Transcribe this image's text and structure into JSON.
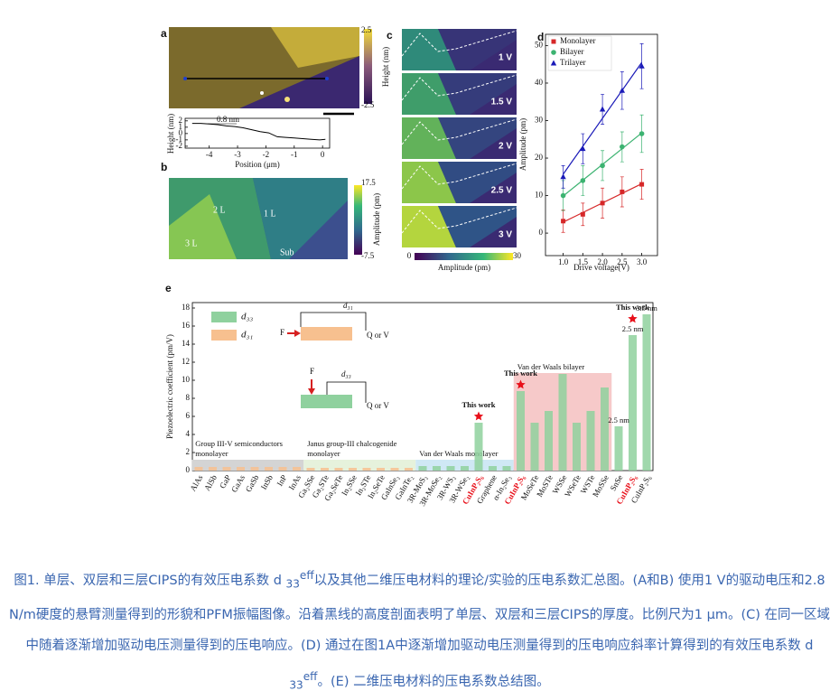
{
  "figure": {
    "a": {
      "label": "a",
      "colorbar": {
        "max": 2.5,
        "min": -2.5,
        "title": "Height (nm)"
      }
    },
    "b": {
      "label": "b",
      "colorbar": {
        "max": 17.5,
        "min": -7.5,
        "title": "Amplitude (pm)"
      },
      "regions": [
        "2 L",
        "1 L",
        "3 L",
        "Sub"
      ]
    },
    "c": {
      "label": "c",
      "frames": [
        "1 V",
        "1.5 V",
        "2 V",
        "2.5 V",
        "3 V"
      ],
      "colorbar": {
        "min": 0,
        "max": 30,
        "title": "Amplitude (pm)"
      }
    },
    "e": {
      "schematic": {
        "force": "F",
        "top_label": "d₃₁",
        "output": "Q or V",
        "bottom_label": "d₃₃"
      }
    }
  },
  "chart_data": [
    {
      "type": "line",
      "x": [
        -4.6,
        -4.3,
        -4.0,
        -3.7,
        -3.4,
        -3.1,
        -2.8,
        -2.5,
        -2.2,
        -1.9,
        -1.6,
        -1.3,
        -1.0,
        -0.7,
        -0.4,
        -0.1,
        0.1
      ],
      "values": [
        1.6,
        1.6,
        1.5,
        1.4,
        1.2,
        1.1,
        0.9,
        0.6,
        0.3,
        0.1,
        -0.5,
        -0.6,
        -0.7,
        -0.8,
        -0.9,
        -1.0,
        -0.9
      ],
      "color": "#000000",
      "xlim": [
        -4.85,
        0.25
      ],
      "ylim": [
        -2.3,
        2.4
      ],
      "xticks": [
        -4,
        -3,
        -2,
        -1,
        0
      ],
      "yticks": [
        2,
        1,
        0,
        -1,
        -2
      ],
      "xlabel": "Position (μm)",
      "ylabel": "Height (nm)",
      "annotation": "0.8 nm"
    },
    {
      "type": "scatter",
      "title": "d",
      "x": [
        1,
        1.5,
        2,
        2.5,
        3
      ],
      "xlim": [
        0.55,
        3.4
      ],
      "ylim": [
        -6,
        53
      ],
      "xticks": [
        {
          "value": 1,
          "label": "1.0"
        },
        1.5,
        {
          "value": 2,
          "label": "2.0"
        },
        2.5,
        {
          "value": 3,
          "label": "3.0"
        }
      ],
      "yticks": [
        0,
        10,
        20,
        30,
        40,
        50
      ],
      "xlabel": "Drive voltage(V)",
      "ylabel": "Amplitude (pm)",
      "legend": "upper left",
      "fit": true,
      "series": [
        {
          "name": "Monolayer",
          "color": "#d62728",
          "marker": "square",
          "values": [
            3.2,
            5,
            8,
            11,
            13
          ],
          "errors": [
            3,
            3,
            4,
            4,
            4
          ]
        },
        {
          "name": "Bilayer",
          "color": "#3cb371",
          "marker": "circle",
          "values": [
            10,
            14,
            18,
            23,
            26.5
          ],
          "errors": [
            4,
            4,
            4,
            4,
            5
          ]
        },
        {
          "name": "Trilayer",
          "color": "#1a1ab8",
          "marker": "triangle",
          "values": [
            15,
            22.5,
            33,
            38,
            44.5
          ],
          "errors": [
            3,
            4,
            4,
            5,
            6
          ]
        }
      ]
    },
    {
      "type": "bar",
      "title": "e",
      "ylabel": "Piezoelectric coefficient (pm/V)",
      "ylim": [
        0,
        18.6
      ],
      "yticks": [
        0,
        2,
        4,
        6,
        8,
        10,
        12,
        14,
        16,
        18
      ],
      "categories": [
        "AlAs",
        "AlSb",
        "GaP",
        "GaAs",
        "GaSb",
        "InSb",
        "InP",
        "InAs",
        "Ga₂SSe",
        "Ga₂STe",
        "Ga₂SeTe",
        "In₂SSe",
        "In₂STe",
        "In₂SeTe",
        "GaInSe₂",
        "GaInTe₂",
        "3R-MoS₂",
        "3R-MoSe₂",
        "3R-WS₂",
        "3R-WSe₂",
        "CuInP₂S₆",
        "Graphene",
        "α-In₂Se₃",
        "CuInP₂S₆",
        "MoSeTe",
        "MoSTe",
        "WSSe",
        "WSeTe",
        "WSTe",
        "MoSSe",
        "SnSe",
        "CuInP₂S₆",
        "CuInP₂S₆"
      ],
      "highlight_categories": [
        20,
        23,
        31
      ],
      "highlight_color": "#e8101a",
      "series": [
        {
          "name": "d₃₃",
          "color": "#8fd19e",
          "values": [
            null,
            null,
            null,
            null,
            null,
            null,
            null,
            null,
            null,
            null,
            null,
            null,
            null,
            null,
            null,
            null,
            0.5,
            0.5,
            0.5,
            0.5,
            5.3,
            0.5,
            0.5,
            8.8,
            5.3,
            6.6,
            10.7,
            5.3,
            6.6,
            9.2,
            4.9,
            15,
            17.3
          ]
        },
        {
          "name": "d₃₁",
          "color": "#f7c08f",
          "values": [
            0.4,
            0.4,
            0.4,
            0.4,
            0.4,
            0.4,
            0.4,
            0.4,
            0.3,
            0.3,
            0.3,
            0.3,
            0.3,
            0.3,
            0.3,
            0.3,
            null,
            null,
            null,
            null,
            null,
            null,
            null,
            null,
            null,
            null,
            null,
            null,
            null,
            null,
            null,
            null,
            null
          ]
        }
      ],
      "groups": [
        {
          "label": [
            "Group III-V semiconductors",
            "monolayer"
          ],
          "from": 0,
          "to": 7,
          "ymax": 1.2,
          "color": "#d4d4d4"
        },
        {
          "label": [
            "Janus group-III chalcogenide",
            "monolayer"
          ],
          "from": 8,
          "to": 15,
          "ymax": 1.2,
          "color": "#e6f2dc"
        },
        {
          "label": [
            "Van der Waals monolayer"
          ],
          "from": 16,
          "to": 22,
          "ymax": 1.2,
          "color": "#cfe8f5"
        },
        {
          "label": [
            "Van der Waals bilayer"
          ],
          "from": 23,
          "to": 29,
          "ymax": 10.8,
          "color": "#f6c9c9"
        }
      ],
      "annotations": [
        {
          "text": "This work",
          "category": 20,
          "star": true
        },
        {
          "text": "This work",
          "category": 23,
          "star": true
        },
        {
          "text": "2.5 nm",
          "category": 30
        },
        {
          "text": "2.5 nm",
          "category": 31
        },
        {
          "text": "This work",
          "category": 31,
          "star": true
        },
        {
          "text": "3.5 nm",
          "category": 32
        }
      ]
    }
  ],
  "caption": [
    "图1. 单层、双层和三层CIPS的有效压电系数 d ",
    "33",
    "eff",
    "以及其他二维压电材料的理论/实验的压电系数汇总图。(A和B) 使用1 V的驱动电压和2.8 N/m硬度的悬臂测量得到的形貌和PFM振幅图像。沿着黑线的高度剖面表明了单层、双层和三层CIPS的厚度。比例尺为1 μm。(C) 在同一区域中随着逐渐增加驱动电压测量得到的压电响应。(D) 通过在图1A中逐渐增加驱动电压测量得到的压电响应斜率计算得到的有效压电系数 d ",
    "33",
    "eff",
    "。(E) 二维压电材料的压电系数总结图。"
  ]
}
